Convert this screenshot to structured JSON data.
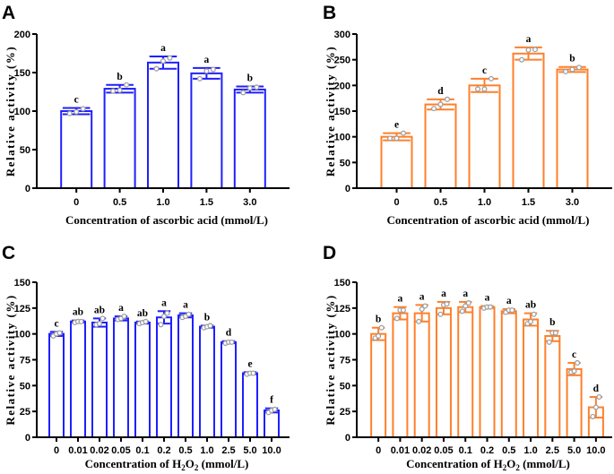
{
  "chart_data": [
    {
      "panel": "A",
      "type": "bar",
      "title": "",
      "xlabel": "Concentration of ascorbic acid (mmol/L)",
      "ylabel": "Relative activity (%)",
      "categories": [
        "0",
        "0.5",
        "1.0",
        "1.5",
        "3.0"
      ],
      "values": [
        100,
        129,
        163,
        149,
        128
      ],
      "errors": [
        4,
        5,
        8,
        7,
        4
      ],
      "points": [
        [
          97,
          99,
          103
        ],
        [
          126,
          127,
          134
        ],
        [
          155,
          165,
          169
        ],
        [
          142,
          152,
          154
        ],
        [
          124,
          130,
          131
        ]
      ],
      "significance": [
        "c",
        "b",
        "a",
        "a",
        "b"
      ],
      "yticks": [
        0,
        50,
        100,
        150,
        200
      ],
      "ylim": [
        0,
        200
      ],
      "color": "#1f1fff",
      "grid": false
    },
    {
      "panel": "B",
      "type": "bar",
      "title": "",
      "xlabel": "Concentration of ascorbic acid (mmol/L)",
      "ylabel": "Relative activity (%)",
      "categories": [
        "0",
        "0.5",
        "1.0",
        "1.5",
        "3.0"
      ],
      "values": [
        100,
        163,
        200,
        262,
        231
      ],
      "errors": [
        7,
        10,
        13,
        12,
        5
      ],
      "points": [
        [
          97,
          97,
          107
        ],
        [
          155,
          163,
          173
        ],
        [
          193,
          193,
          213
        ],
        [
          250,
          269,
          270
        ],
        [
          227,
          231,
          235
        ]
      ],
      "significance": [
        "e",
        "d",
        "c",
        "a",
        "b"
      ],
      "yticks": [
        0,
        50,
        100,
        150,
        200,
        250,
        300
      ],
      "ylim": [
        0,
        300
      ],
      "color": "#ff7f2a",
      "grid": false
    },
    {
      "panel": "C",
      "type": "bar",
      "title": "",
      "xlabel": "Concentration of H2O2 (mmol/L)",
      "xlabel_parts": [
        "Concentration of H",
        "2",
        "O",
        "2",
        " (mmol/L)"
      ],
      "ylabel": "Relative activity (%)",
      "categories": [
        "0",
        "0.01",
        "0.02",
        "0.05",
        "0.1",
        "0.2",
        "0.5",
        "1.0",
        "2.5",
        "5.0",
        "10.0"
      ],
      "values": [
        100,
        112,
        111,
        115,
        111,
        116,
        118,
        107,
        92,
        62,
        26
      ],
      "errors": [
        2,
        1,
        4,
        2,
        1,
        6,
        2,
        1,
        1,
        1,
        2
      ],
      "points": [
        [
          98,
          100,
          101
        ],
        [
          111,
          112,
          112
        ],
        [
          109,
          110,
          115
        ],
        [
          114,
          115,
          117
        ],
        [
          110,
          111,
          112
        ],
        [
          109,
          117,
          120
        ],
        [
          116,
          117,
          119
        ],
        [
          106,
          107,
          108
        ],
        [
          91,
          92,
          92
        ],
        [
          61,
          62,
          62
        ],
        [
          24,
          26,
          27
        ]
      ],
      "significance": [
        "c",
        "ab",
        "ab",
        "a",
        "ab",
        "a",
        "a",
        "b",
        "d",
        "e",
        "f"
      ],
      "yticks": [
        0,
        25,
        50,
        75,
        100,
        125,
        150
      ],
      "ylim": [
        0,
        150
      ],
      "color": "#1f1fff",
      "grid": false
    },
    {
      "panel": "D",
      "type": "bar",
      "title": "",
      "xlabel": "Concentration of H2O2 (mmol/L)",
      "xlabel_parts": [
        "Concentration of H",
        "2",
        "O",
        "2",
        " (mmol/L)"
      ],
      "ylabel": "Relative activity (%)",
      "categories": [
        "0",
        "0.01",
        "0.02",
        "0.05",
        "0.1",
        "0.2",
        "0.5",
        "1.0",
        "2.5",
        "5.0",
        "10.0"
      ],
      "values": [
        100,
        120,
        120,
        125,
        126,
        126,
        122,
        114,
        98,
        66,
        29
      ],
      "errors": [
        6,
        6,
        8,
        6,
        5,
        1,
        2,
        6,
        5,
        6,
        10
      ],
      "points": [
        [
          96,
          98,
          106
        ],
        [
          115,
          123,
          123
        ],
        [
          112,
          124,
          127
        ],
        [
          119,
          128,
          129
        ],
        [
          122,
          127,
          130
        ],
        [
          125,
          126,
          126
        ],
        [
          121,
          123,
          123
        ],
        [
          110,
          112,
          119
        ],
        [
          92,
          101,
          101
        ],
        [
          63,
          64,
          72
        ],
        [
          20,
          29,
          39
        ]
      ],
      "significance": [
        "b",
        "a",
        "a",
        "a",
        "a",
        "a",
        "a",
        "ab",
        "b",
        "c",
        "d"
      ],
      "yticks": [
        0,
        25,
        50,
        75,
        100,
        125,
        150
      ],
      "ylim": [
        0,
        150
      ],
      "color": "#ff7f2a",
      "grid": false
    }
  ],
  "point_color": "#a0a0a0"
}
